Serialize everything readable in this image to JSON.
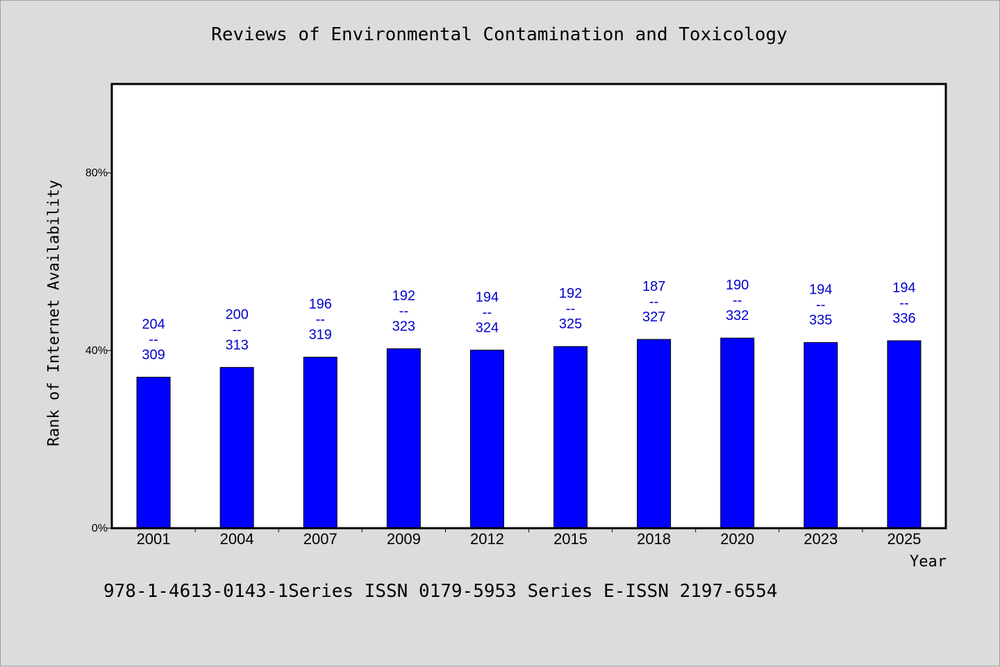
{
  "chart_data": {
    "type": "bar",
    "title": "Reviews of Environmental Contamination and Toxicology",
    "xlabel": "Year",
    "ylabel": "Rank of Internet Availability",
    "categories": [
      "2001",
      "2004",
      "2007",
      "2009",
      "2012",
      "2015",
      "2018",
      "2020",
      "2023",
      "2025"
    ],
    "values": [
      34,
      36.2,
      38.5,
      40.4,
      40.1,
      40.9,
      42.5,
      42.8,
      41.8,
      42.2
    ],
    "value_unit": "%",
    "data_labels": [
      {
        "top": "204",
        "mid": "--",
        "bottom": "309"
      },
      {
        "top": "200",
        "mid": "--",
        "bottom": "313"
      },
      {
        "top": "196",
        "mid": "--",
        "bottom": "319"
      },
      {
        "top": "192",
        "mid": "--",
        "bottom": "323"
      },
      {
        "top": "194",
        "mid": "--",
        "bottom": "324"
      },
      {
        "top": "192",
        "mid": "--",
        "bottom": "325"
      },
      {
        "top": "187",
        "mid": "--",
        "bottom": "327"
      },
      {
        "top": "190",
        "mid": "--",
        "bottom": "332"
      },
      {
        "top": "194",
        "mid": "--",
        "bottom": "335"
      },
      {
        "top": "194",
        "mid": "--",
        "bottom": "336"
      }
    ],
    "yticks": [
      {
        "value": 0,
        "label": "0%"
      },
      {
        "value": 40,
        "label": "40%"
      },
      {
        "value": 80,
        "label": "80%"
      }
    ],
    "ylim": [
      0,
      100
    ],
    "grid": false,
    "legend": "none",
    "bar_color": "#0000ff",
    "label_color": "#0000cc",
    "background": "#dcdcdc",
    "plot_background": "#ffffff"
  },
  "footer": {
    "text": "978-1-4613-0143-1Series ISSN 0179-5953 Series E-ISSN 2197-6554"
  }
}
